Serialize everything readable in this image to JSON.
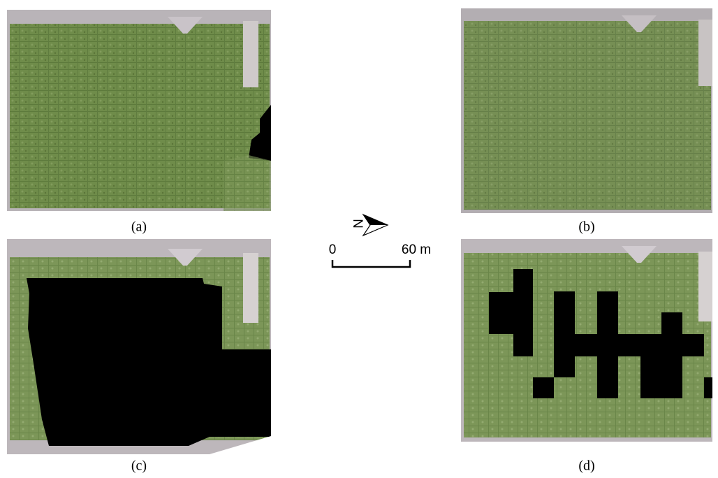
{
  "panels": [
    {
      "label": "(a)"
    },
    {
      "label": "(b)"
    },
    {
      "label": "(c)"
    },
    {
      "label": "(d)"
    }
  ],
  "north_arrow": {
    "label": "N"
  },
  "scale_bar": {
    "ticks": [
      {
        "label": "0"
      },
      {
        "label": "60 m"
      }
    ]
  }
}
